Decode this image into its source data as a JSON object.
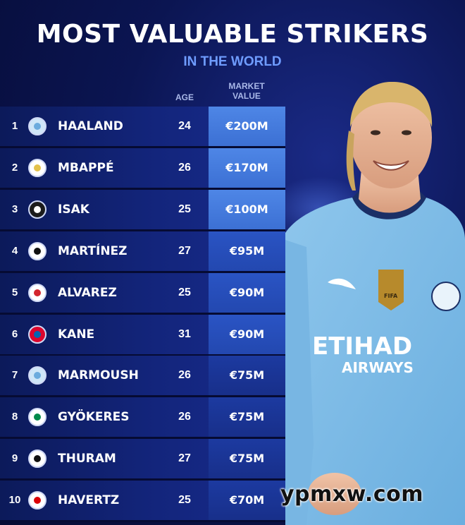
{
  "header": {
    "title": "MOST VALUABLE STRIKERS",
    "subtitle": "IN THE WORLD",
    "col_age": "AGE",
    "col_value_line1": "MARKET",
    "col_value_line2": "VALUE"
  },
  "rows": [
    {
      "rank": "1",
      "name": "HAALAND",
      "age": "24",
      "value": "€200M",
      "crest": "man-city-crest-icon"
    },
    {
      "rank": "2",
      "name": "MBAPPÉ",
      "age": "26",
      "value": "€170M",
      "crest": "real-madrid-crest-icon"
    },
    {
      "rank": "3",
      "name": "ISAK",
      "age": "25",
      "value": "€100M",
      "crest": "newcastle-crest-icon"
    },
    {
      "rank": "4",
      "name": "MARTÍNEZ",
      "age": "27",
      "value": "€95M",
      "crest": "inter-crest-icon"
    },
    {
      "rank": "5",
      "name": "ALVAREZ",
      "age": "25",
      "value": "€90M",
      "crest": "atletico-crest-icon"
    },
    {
      "rank": "6",
      "name": "KANE",
      "age": "31",
      "value": "€90M",
      "crest": "bayern-crest-icon"
    },
    {
      "rank": "7",
      "name": "MARMOUSH",
      "age": "26",
      "value": "€75M",
      "crest": "man-city-crest-icon"
    },
    {
      "rank": "8",
      "name": "GYÖKERES",
      "age": "26",
      "value": "€75M",
      "crest": "sporting-crest-icon"
    },
    {
      "rank": "9",
      "name": "THURAM",
      "age": "27",
      "value": "€75M",
      "crest": "inter-crest-icon"
    },
    {
      "rank": "10",
      "name": "HAVERTZ",
      "age": "25",
      "value": "€70M",
      "crest": "arsenal-crest-icon"
    }
  ],
  "player_image": {
    "shirt_sponsor": "ETIHAD",
    "shirt_sponsor_line2": "AIRWAYS",
    "badge_text": "FIFA"
  },
  "watermark": "ypmxw.com"
}
